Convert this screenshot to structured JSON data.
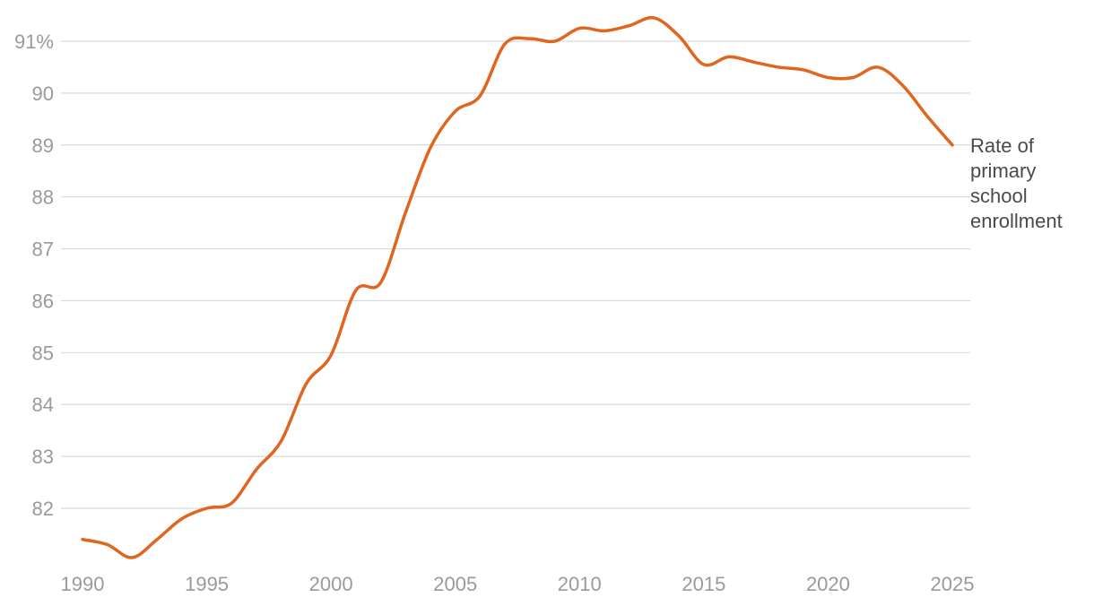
{
  "chart_data": {
    "type": "line",
    "title": "",
    "xlabel": "",
    "ylabel": "",
    "xlim": [
      1990,
      2025
    ],
    "ylim": [
      81,
      91.3
    ],
    "grid": true,
    "legend": "none",
    "colors": {
      "line": "#e0651f",
      "grid": "#d9d9d9",
      "tick_label": "#9a9a9a",
      "series_label": "#4a4a4a"
    },
    "x_ticks": [
      {
        "value": 1990,
        "label": "1990"
      },
      {
        "value": 1995,
        "label": "1995"
      },
      {
        "value": 2000,
        "label": "2000"
      },
      {
        "value": 2005,
        "label": "2005"
      },
      {
        "value": 2010,
        "label": "2010"
      },
      {
        "value": 2015,
        "label": "2015"
      },
      {
        "value": 2020,
        "label": "2020"
      },
      {
        "value": 2025,
        "label": "2025"
      }
    ],
    "y_ticks": [
      {
        "value": 82,
        "label": "82"
      },
      {
        "value": 83,
        "label": "83"
      },
      {
        "value": 84,
        "label": "84"
      },
      {
        "value": 85,
        "label": "85"
      },
      {
        "value": 86,
        "label": "86"
      },
      {
        "value": 87,
        "label": "87"
      },
      {
        "value": 88,
        "label": "88"
      },
      {
        "value": 89,
        "label": "89"
      },
      {
        "value": 90,
        "label": "90"
      },
      {
        "value": 91,
        "label": "91%"
      }
    ],
    "series": [
      {
        "label_lines": [
          "Rate of",
          "primary",
          "school",
          "enrollment"
        ],
        "x": [
          1990,
          1991,
          1992,
          1993,
          1994,
          1995,
          1996,
          1997,
          1998,
          1999,
          2000,
          2001,
          2002,
          2003,
          2004,
          2005,
          2006,
          2007,
          2008,
          2009,
          2010,
          2011,
          2012,
          2013,
          2014,
          2015,
          2016,
          2017,
          2018,
          2019,
          2020,
          2021,
          2022,
          2023,
          2024,
          2025
        ],
        "y": [
          81.4,
          81.3,
          81.05,
          81.4,
          81.8,
          82.0,
          82.1,
          82.75,
          83.3,
          84.4,
          84.95,
          86.2,
          86.35,
          87.7,
          88.95,
          89.65,
          89.95,
          90.95,
          91.05,
          91.0,
          91.25,
          91.2,
          91.3,
          91.45,
          91.1,
          90.55,
          90.7,
          90.6,
          90.5,
          90.45,
          90.3,
          90.3,
          90.5,
          90.15,
          89.55,
          89.0
        ]
      }
    ]
  }
}
